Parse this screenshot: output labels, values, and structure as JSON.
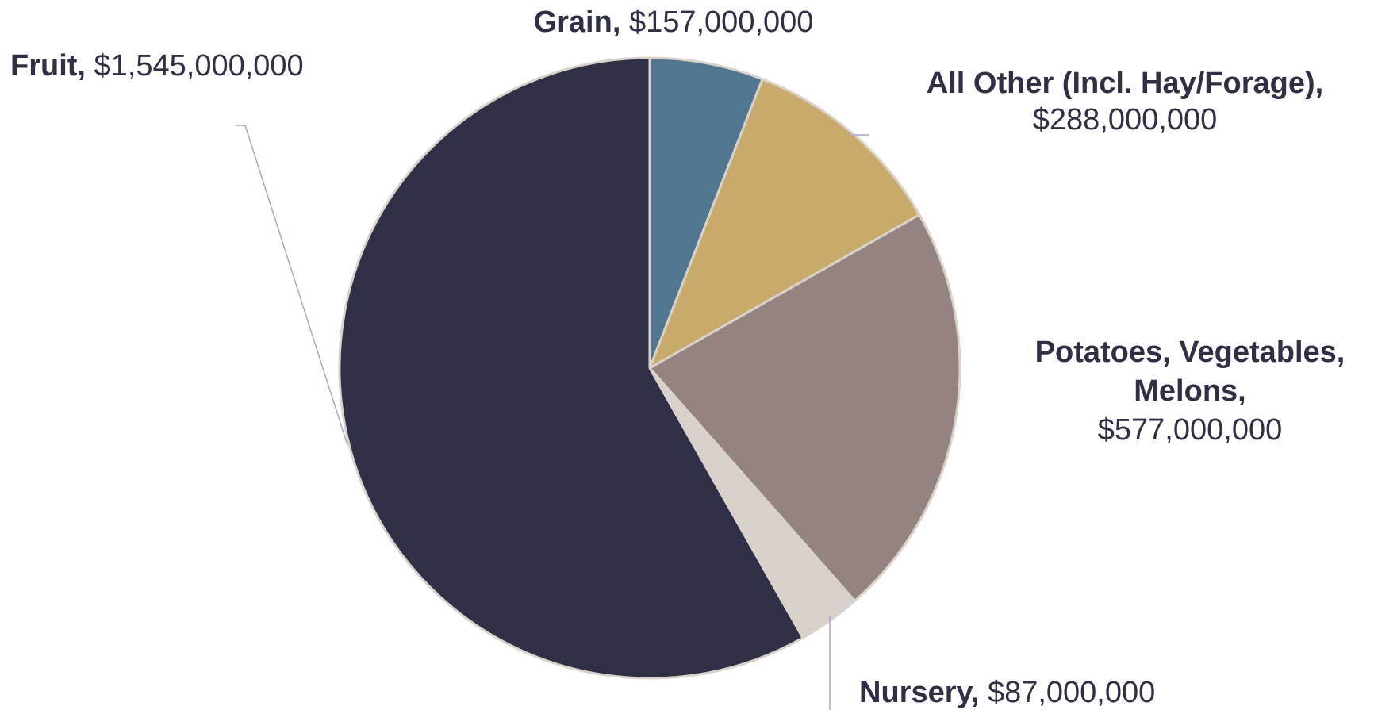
{
  "chart_data": {
    "type": "pie",
    "categories": [
      "Grain,",
      "All Other (Incl. Hay/Forage),",
      "Potatoes, Vegetables, Melons,",
      "Nursery,",
      "Fruit,"
    ],
    "values": [
      157000000,
      288000000,
      577000000,
      87000000,
      1545000000
    ],
    "value_labels": [
      "$157,000,000",
      "$288,000,000",
      "$577,000,000",
      "$87,000,000",
      "$1,545,000,000"
    ],
    "colors": [
      "#51768f",
      "#c8aa6a",
      "#95837f",
      "#d8d1ca",
      "#2f3046"
    ]
  }
}
